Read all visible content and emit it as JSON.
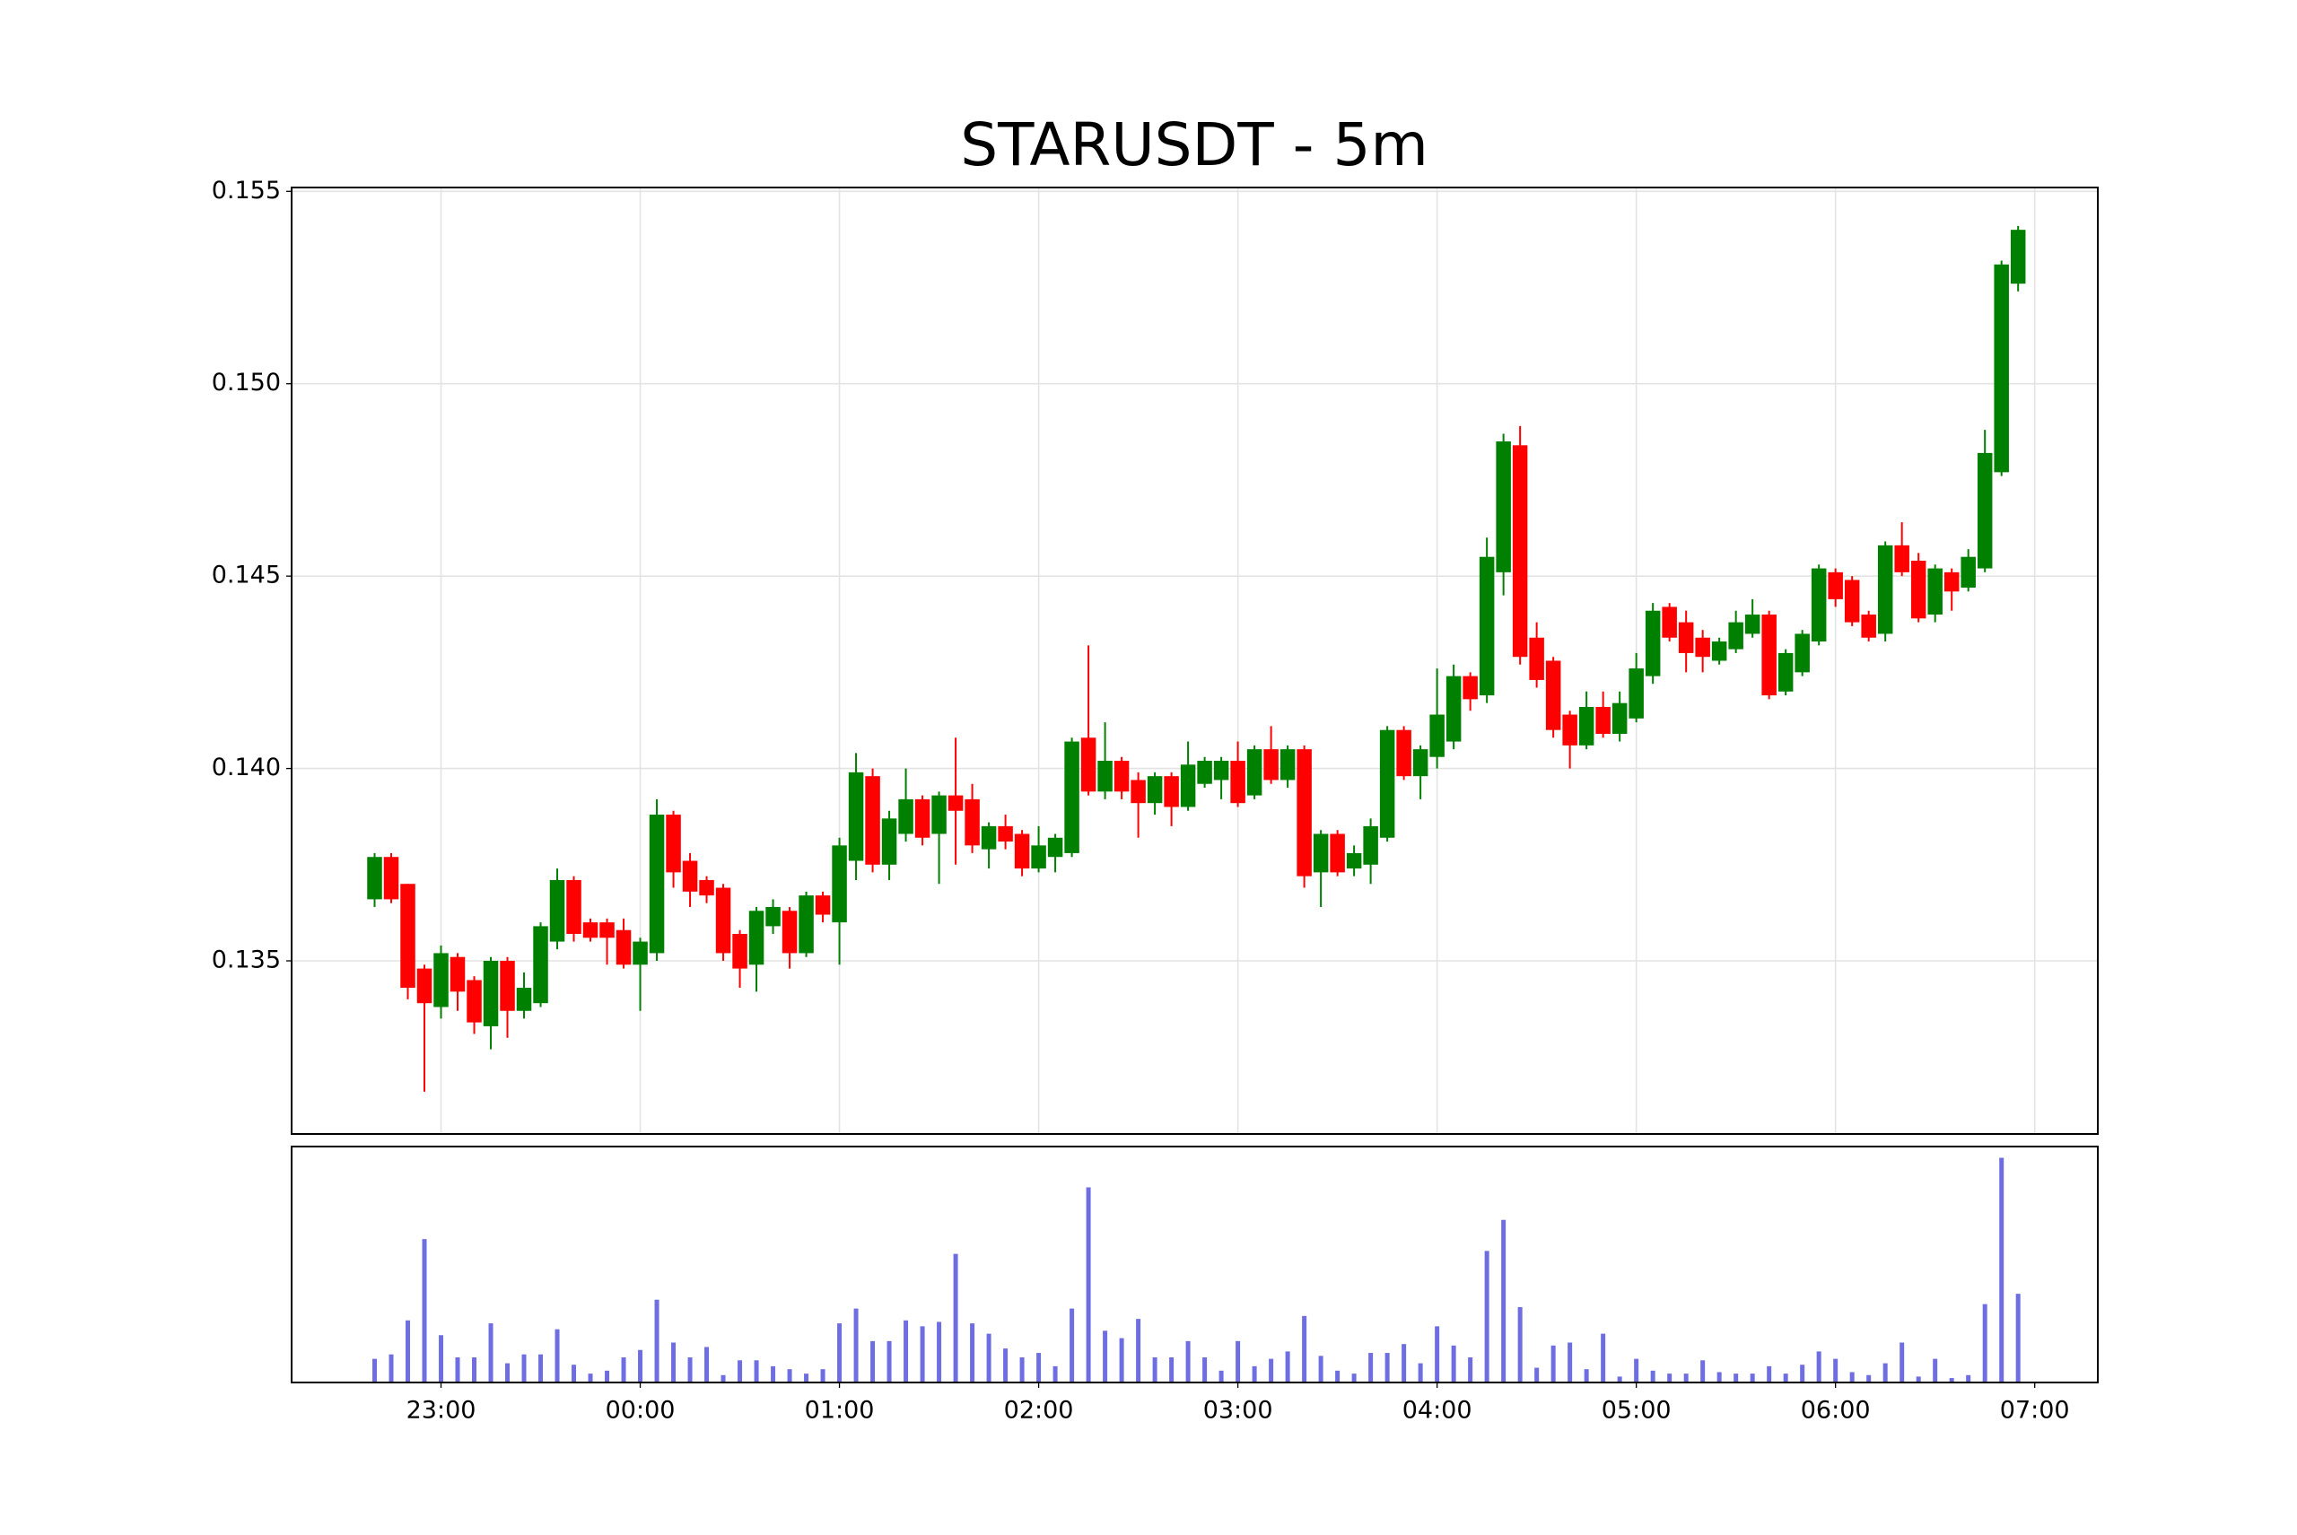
{
  "chart_data": {
    "type": "candlestick",
    "title": "STARUSDT - 5m",
    "x": [
      "22:40",
      "22:45",
      "22:50",
      "22:55",
      "23:00",
      "23:05",
      "23:10",
      "23:15",
      "23:20",
      "23:25",
      "23:30",
      "23:35",
      "23:40",
      "23:45",
      "23:50",
      "23:55",
      "00:00",
      "00:05",
      "00:10",
      "00:15",
      "00:20",
      "00:25",
      "00:30",
      "00:35",
      "00:40",
      "00:45",
      "00:50",
      "00:55",
      "01:00",
      "01:05",
      "01:10",
      "01:15",
      "01:20",
      "01:25",
      "01:30",
      "01:35",
      "01:40",
      "01:45",
      "01:50",
      "01:55",
      "02:00",
      "02:05",
      "02:10",
      "02:15",
      "02:20",
      "02:25",
      "02:30",
      "02:35",
      "02:40",
      "02:45",
      "02:50",
      "02:55",
      "03:00",
      "03:05",
      "03:10",
      "03:15",
      "03:20",
      "03:25",
      "03:30",
      "03:35",
      "03:40",
      "03:45",
      "03:50",
      "03:55",
      "04:00",
      "04:05",
      "04:10",
      "04:15",
      "04:20",
      "04:25",
      "04:30",
      "04:35",
      "04:40",
      "04:45",
      "04:50",
      "04:55",
      "05:00",
      "05:05",
      "05:10",
      "05:15",
      "05:20",
      "05:25",
      "05:30",
      "05:35",
      "05:40",
      "05:45",
      "05:50",
      "05:55",
      "06:00",
      "06:05",
      "06:10",
      "06:15",
      "06:20",
      "06:25",
      "06:30",
      "06:35",
      "06:40",
      "06:45",
      "06:50",
      "06:55"
    ],
    "open": [
      0.1366,
      0.1377,
      0.137,
      0.1348,
      0.1338,
      0.1351,
      0.1345,
      0.1333,
      0.135,
      0.1337,
      0.1339,
      0.1355,
      0.1371,
      0.136,
      0.136,
      0.1358,
      0.1349,
      0.1352,
      0.1388,
      0.1376,
      0.1371,
      0.1369,
      0.1357,
      0.1349,
      0.1359,
      0.1363,
      0.1352,
      0.1367,
      0.136,
      0.1376,
      0.1398,
      0.1375,
      0.1383,
      0.1392,
      0.1383,
      0.1393,
      0.1392,
      0.1379,
      0.1385,
      0.1383,
      0.1374,
      0.1377,
      0.1378,
      0.1408,
      0.1394,
      0.1402,
      0.1397,
      0.1391,
      0.1398,
      0.139,
      0.1396,
      0.1397,
      0.1402,
      0.1393,
      0.1405,
      0.1397,
      0.1405,
      0.1373,
      0.1383,
      0.1374,
      0.1375,
      0.1382,
      0.141,
      0.1398,
      0.1403,
      0.1407,
      0.1424,
      0.1419,
      0.1451,
      0.1484,
      0.1434,
      0.1428,
      0.1414,
      0.1406,
      0.1416,
      0.1409,
      0.1413,
      0.1424,
      0.1442,
      0.1438,
      0.1434,
      0.1428,
      0.1431,
      0.1435,
      0.144,
      0.142,
      0.1425,
      0.1433,
      0.1451,
      0.1449,
      0.144,
      0.1435,
      0.1458,
      0.1454,
      0.144,
      0.1451,
      0.1447,
      0.1452,
      0.1477,
      0.1526
    ],
    "high": [
      0.1378,
      0.1378,
      0.137,
      0.1349,
      0.1354,
      0.1352,
      0.1346,
      0.1351,
      0.1351,
      0.1347,
      0.136,
      0.1374,
      0.1372,
      0.1361,
      0.1361,
      0.1361,
      0.1356,
      0.1392,
      0.1389,
      0.1378,
      0.1372,
      0.137,
      0.1358,
      0.1364,
      0.1366,
      0.1364,
      0.1368,
      0.1368,
      0.1382,
      0.1404,
      0.14,
      0.1389,
      0.14,
      0.1393,
      0.1394,
      0.1408,
      0.1396,
      0.1386,
      0.1388,
      0.1384,
      0.1385,
      0.1383,
      0.1408,
      0.1432,
      0.1412,
      0.1403,
      0.1399,
      0.1399,
      0.1399,
      0.1407,
      0.1403,
      0.1403,
      0.1407,
      0.1406,
      0.1411,
      0.1406,
      0.1406,
      0.1384,
      0.1384,
      0.138,
      0.1387,
      0.1411,
      0.1411,
      0.1406,
      0.1426,
      0.1427,
      0.1425,
      0.146,
      0.1487,
      0.1489,
      0.1438,
      0.1429,
      0.1415,
      0.142,
      0.142,
      0.142,
      0.143,
      0.1443,
      0.1443,
      0.1441,
      0.1436,
      0.1434,
      0.1441,
      0.1444,
      0.1441,
      0.1431,
      0.1436,
      0.1453,
      0.1452,
      0.145,
      0.1441,
      0.1459,
      0.1464,
      0.1456,
      0.1453,
      0.1452,
      0.1457,
      0.1488,
      0.1532,
      0.1541
    ],
    "low": [
      0.1364,
      0.1365,
      0.134,
      0.1316,
      0.1335,
      0.1337,
      0.1331,
      0.1327,
      0.133,
      0.1335,
      0.1338,
      0.1353,
      0.1355,
      0.1355,
      0.1349,
      0.1348,
      0.1337,
      0.135,
      0.1369,
      0.1364,
      0.1365,
      0.135,
      0.1343,
      0.1342,
      0.1357,
      0.1348,
      0.1351,
      0.136,
      0.1349,
      0.1371,
      0.1373,
      0.1371,
      0.1381,
      0.138,
      0.137,
      0.1375,
      0.1378,
      0.1374,
      0.1379,
      0.1372,
      0.1373,
      0.1373,
      0.1377,
      0.1393,
      0.1392,
      0.1392,
      0.1382,
      0.1388,
      0.1385,
      0.1389,
      0.1395,
      0.1392,
      0.139,
      0.1392,
      0.1396,
      0.1395,
      0.1369,
      0.1364,
      0.1372,
      0.1372,
      0.137,
      0.1381,
      0.1397,
      0.1392,
      0.14,
      0.1405,
      0.1415,
      0.1417,
      0.1445,
      0.1427,
      0.1421,
      0.1408,
      0.14,
      0.1405,
      0.1408,
      0.1407,
      0.1412,
      0.1422,
      0.1433,
      0.1425,
      0.1425,
      0.1427,
      0.143,
      0.1434,
      0.1418,
      0.1419,
      0.1424,
      0.1432,
      0.1442,
      0.1437,
      0.1433,
      0.1433,
      0.145,
      0.1438,
      0.1438,
      0.1441,
      0.1446,
      0.1451,
      0.1476,
      0.1524
    ],
    "close": [
      0.1377,
      0.1366,
      0.1343,
      0.1339,
      0.1352,
      0.1342,
      0.1334,
      0.135,
      0.1337,
      0.1343,
      0.1359,
      0.1371,
      0.1357,
      0.1356,
      0.1356,
      0.1349,
      0.1355,
      0.1388,
      0.1373,
      0.1368,
      0.1367,
      0.1352,
      0.1348,
      0.1363,
      0.1364,
      0.1352,
      0.1367,
      0.1362,
      0.138,
      0.1399,
      0.1375,
      0.1387,
      0.1392,
      0.1382,
      0.1393,
      0.1389,
      0.138,
      0.1385,
      0.1381,
      0.1374,
      0.138,
      0.1382,
      0.1407,
      0.1394,
      0.1402,
      0.1394,
      0.1391,
      0.1398,
      0.139,
      0.1401,
      0.1402,
      0.1402,
      0.1391,
      0.1405,
      0.1397,
      0.1405,
      0.1372,
      0.1383,
      0.1373,
      0.1378,
      0.1385,
      0.141,
      0.1398,
      0.1405,
      0.1414,
      0.1424,
      0.1418,
      0.1455,
      0.1485,
      0.1429,
      0.1423,
      0.141,
      0.1406,
      0.1416,
      0.1409,
      0.1417,
      0.1426,
      0.1441,
      0.1434,
      0.143,
      0.1429,
      0.1433,
      0.1438,
      0.144,
      0.1419,
      0.143,
      0.1435,
      0.1452,
      0.1444,
      0.1438,
      0.1434,
      0.1458,
      0.1451,
      0.1439,
      0.1452,
      0.1446,
      0.1455,
      0.1482,
      0.1531,
      0.154
    ],
    "volume": [
      16,
      19,
      42,
      97,
      32,
      17,
      17,
      40,
      13,
      19,
      19,
      36,
      12,
      6,
      8,
      17,
      22,
      56,
      27,
      17,
      24,
      5,
      15,
      15,
      11,
      9,
      6,
      9,
      40,
      50,
      28,
      28,
      42,
      38,
      41,
      87,
      40,
      33,
      23,
      17,
      20,
      11,
      50,
      132,
      35,
      30,
      43,
      17,
      17,
      28,
      17,
      8,
      28,
      11,
      16,
      21,
      45,
      18,
      8,
      6,
      20,
      20,
      26,
      13,
      38,
      25,
      17,
      89,
      110,
      51,
      10,
      25,
      27,
      9,
      33,
      4,
      16,
      8,
      6,
      6,
      15,
      7,
      6,
      6,
      11,
      6,
      12,
      21,
      16,
      7,
      5,
      13,
      27,
      4,
      16,
      3,
      5,
      53,
      152,
      60
    ],
    "up_color": "#008000",
    "down_color": "#ff0000",
    "volume_color": "#5555dd",
    "xlim": [
      "22:15",
      "07:19"
    ],
    "xticks": [
      "23:00",
      "00:00",
      "01:00",
      "02:00",
      "03:00",
      "04:00",
      "05:00",
      "06:00",
      "07:00"
    ],
    "ylim": [
      0.1305,
      0.1551
    ],
    "yticks": [
      0.135,
      {
        "value": 0.14,
        "label": "0.140"
      },
      0.145,
      {
        "value": 0.15,
        "label": "0.150"
      },
      0.155
    ],
    "grid": true
  }
}
